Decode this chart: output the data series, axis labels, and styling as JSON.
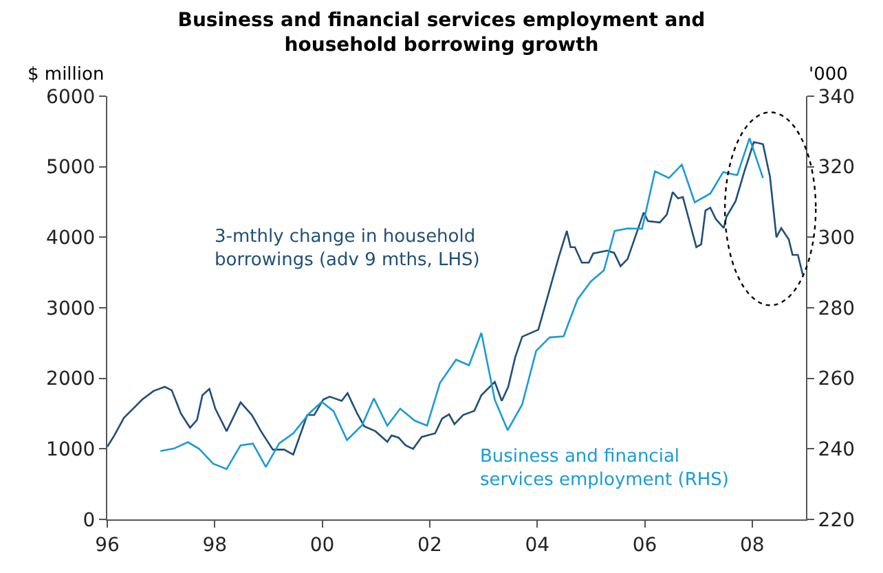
{
  "chart_data": {
    "type": "line",
    "title": "Business and financial services employment and\nhousehold borrowing growth",
    "ylabel": "$ million",
    "y2label": "'000",
    "xlim": [
      1996,
      2009
    ],
    "xticks": [
      {
        "value": 1996,
        "label": "96"
      },
      {
        "value": 1998,
        "label": "98"
      },
      {
        "value": 2000,
        "label": "00"
      },
      {
        "value": 2002,
        "label": "02"
      },
      {
        "value": 2004,
        "label": "04"
      },
      {
        "value": 2006,
        "label": "06"
      },
      {
        "value": 2008,
        "label": "08"
      }
    ],
    "ylim": [
      0,
      6000
    ],
    "yticks": [
      0,
      1000,
      2000,
      3000,
      4000,
      5000,
      6000
    ],
    "y2lim": [
      220,
      340
    ],
    "y2ticks": [
      220,
      240,
      260,
      280,
      300,
      320,
      340
    ],
    "line_style": "solid",
    "series": [
      {
        "name": "3-mthly change in household borrowings (adv 9 mths, LHS)",
        "color": "#1f4e79",
        "axis": "y",
        "x": [
          1996.0,
          1996.13,
          1996.31,
          1996.48,
          1996.65,
          1996.86,
          1997.07,
          1997.2,
          1997.37,
          1997.54,
          1997.67,
          1997.77,
          1997.9,
          1998.01,
          1998.22,
          1998.48,
          1998.69,
          1998.86,
          1999.08,
          1999.29,
          1999.46,
          1999.72,
          1999.85,
          2000.02,
          2000.14,
          2000.36,
          2000.47,
          2000.65,
          2000.78,
          2000.99,
          2001.21,
          2001.29,
          2001.42,
          2001.55,
          2001.69,
          2001.85,
          2002.1,
          2002.23,
          2002.36,
          2002.46,
          2002.62,
          2002.83,
          2002.96,
          2003.21,
          2003.34,
          2003.46,
          2003.59,
          2003.72,
          2004.02,
          2004.19,
          2004.4,
          2004.55,
          2004.62,
          2004.7,
          2004.83,
          2004.96,
          2005.04,
          2005.3,
          2005.43,
          2005.55,
          2005.68,
          2005.98,
          2006.06,
          2006.28,
          2006.41,
          2006.52,
          2006.62,
          2006.71,
          2006.83,
          2006.96,
          2007.05,
          2007.13,
          2007.22,
          2007.32,
          2007.47,
          2007.52,
          2007.69,
          2007.86,
          2008.03,
          2008.2,
          2008.33,
          2008.45,
          2008.54,
          2008.68,
          2008.75,
          2008.85,
          2008.94
        ],
        "values": [
          1030,
          1190,
          1440,
          1570,
          1700,
          1820,
          1880,
          1830,
          1500,
          1300,
          1410,
          1760,
          1850,
          1570,
          1250,
          1660,
          1480,
          1250,
          990,
          990,
          920,
          1480,
          1480,
          1700,
          1740,
          1680,
          1790,
          1500,
          1320,
          1250,
          1100,
          1190,
          1160,
          1050,
          1000,
          1170,
          1220,
          1430,
          1490,
          1350,
          1480,
          1540,
          1760,
          1950,
          1680,
          1880,
          2300,
          2590,
          2690,
          3150,
          3720,
          4090,
          3860,
          3860,
          3640,
          3640,
          3770,
          3810,
          3780,
          3590,
          3690,
          4350,
          4230,
          4210,
          4320,
          4640,
          4550,
          4570,
          4230,
          3860,
          3900,
          4380,
          4420,
          4260,
          4130,
          4290,
          4510,
          4950,
          5350,
          5320,
          4860,
          4000,
          4130,
          3970,
          3750,
          3750,
          3470
        ]
      },
      {
        "name": "Business and financial services employment (RHS)",
        "color": "#1a9bd7",
        "axis": "y2",
        "x": [
          1996.99,
          1997.24,
          1997.5,
          1997.71,
          1997.97,
          1998.22,
          1998.48,
          1998.71,
          1998.95,
          1999.2,
          1999.46,
          1999.76,
          1999.99,
          2000.21,
          2000.46,
          2000.74,
          2000.96,
          2001.21,
          2001.45,
          2001.72,
          2001.95,
          2002.19,
          2002.49,
          2002.73,
          2002.96,
          2003.21,
          2003.45,
          2003.72,
          2003.98,
          2004.23,
          2004.49,
          2004.75,
          2005.0,
          2005.24,
          2005.44,
          2005.68,
          2005.95,
          2006.19,
          2006.45,
          2006.69,
          2006.93,
          2007.22,
          2007.46,
          2007.72,
          2007.95,
          2008.2
        ],
        "values": [
          239.4,
          240.1,
          241.9,
          240.0,
          235.8,
          234.3,
          241.0,
          241.5,
          234.9,
          241.6,
          244.4,
          250.1,
          253.3,
          250.7,
          242.5,
          246.7,
          254.3,
          246.6,
          251.4,
          248.0,
          246.6,
          258.7,
          265.3,
          263.7,
          272.9,
          253.9,
          245.3,
          252.6,
          267.8,
          271.6,
          271.9,
          282.4,
          287.5,
          290.6,
          301.8,
          302.5,
          302.4,
          318.7,
          316.8,
          320.6,
          309.9,
          312.4,
          318.5,
          317.6,
          328.1,
          316.8
        ]
      }
    ]
  }
}
